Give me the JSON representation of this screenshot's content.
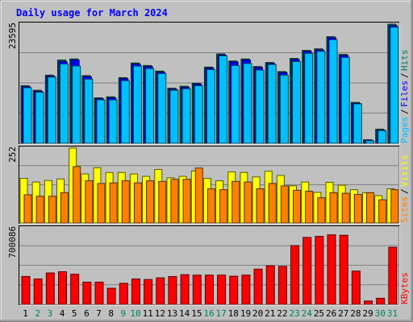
{
  "colors": {
    "background": "#c0c0c0",
    "plot_bg": "#c0c0c0",
    "title": "#0000ff",
    "hits": "#00805c",
    "files": "#0000ff",
    "pages": "#00c0ff",
    "visits": "#ffff00",
    "sites": "#ff8000",
    "kbytes": "#ff0000",
    "weekend_day": "#00805c",
    "weekday": "#000000"
  },
  "chart_data": {
    "type": "bar",
    "title": "Daily usage for March 2024",
    "categories": [
      "1",
      "2",
      "3",
      "4",
      "5",
      "6",
      "7",
      "8",
      "9",
      "10",
      "11",
      "12",
      "13",
      "14",
      "15",
      "16",
      "17",
      "18",
      "19",
      "20",
      "21",
      "22",
      "23",
      "24",
      "25",
      "26",
      "27",
      "28",
      "29",
      "30",
      "31"
    ],
    "weekend_days": [
      "2",
      "3",
      "9",
      "10",
      "16",
      "17",
      "23",
      "24",
      "30",
      "31"
    ],
    "panels": [
      {
        "name": "hits-files-pages",
        "y_max_label": "23595",
        "ymax": 23595,
        "legend": [
          "Pages",
          "Files",
          "Hits"
        ],
        "series": [
          {
            "name": "Hits",
            "values": [
              11400,
              10500,
              13500,
              16500,
              16700,
              13400,
              9000,
              9200,
              13000,
              15900,
              15400,
              14300,
              10900,
              11300,
              11900,
              15100,
              17700,
              16300,
              16700,
              15200,
              16000,
              14200,
              16800,
              18400,
              18700,
              21100,
              17600,
              8100,
              700,
              2800,
              23595
            ]
          },
          {
            "name": "Files",
            "values": [
              11200,
              10300,
              13300,
              16200,
              16500,
              13200,
              8800,
              9000,
              12800,
              15700,
              15200,
              14100,
              10700,
              11100,
              11700,
              14900,
              17500,
              16100,
              16500,
              15000,
              15800,
              14000,
              16600,
              18200,
              18500,
              20900,
              17400,
              7900,
              600,
              2600,
              23300
            ]
          },
          {
            "name": "Pages",
            "values": [
              11000,
              10100,
              13100,
              15700,
              15300,
              12700,
              8600,
              8600,
              12400,
              15300,
              14800,
              13800,
              10500,
              10800,
              11400,
              14600,
              17300,
              15400,
              15800,
              14500,
              15600,
              13500,
              16200,
              17800,
              18200,
              20500,
              17000,
              7800,
              500,
              2500,
              23000
            ]
          }
        ]
      },
      {
        "name": "visits-sites",
        "y_max_label": "252",
        "ymax": 252,
        "legend": [
          "Sites",
          "Visits"
        ],
        "series": [
          {
            "name": "Visits",
            "values": [
              150,
              138,
              143,
              148,
              252,
              165,
              186,
              170,
              170,
              165,
              157,
              180,
              152,
              157,
              175,
              150,
              142,
              172,
              170,
              155,
              174,
              160,
              125,
              138,
              103,
              137,
              127,
              112,
              102,
              92,
              115
            ]
          },
          {
            "name": "Sites",
            "values": [
              95,
              90,
              90,
              102,
              190,
              142,
              133,
              135,
              142,
              135,
              142,
              140,
              147,
              147,
              185,
              115,
              112,
              140,
              138,
              115,
              133,
              125,
              110,
              107,
              85,
              102,
              100,
              96,
              102,
              78,
              112
            ]
          }
        ]
      },
      {
        "name": "kbytes",
        "y_max_label": "700086",
        "ymax": 700086,
        "legend": [
          "KBytes"
        ],
        "series": [
          {
            "name": "KBytes",
            "values": [
              255000,
              232000,
              287000,
              298000,
              275000,
              203000,
              203000,
              147000,
              192000,
              232000,
              227000,
              242000,
              254000,
              271000,
              267000,
              267000,
              267000,
              257000,
              267000,
              322000,
              352000,
              347000,
              537000,
              612000,
              622000,
              636000,
              632000,
              304000,
              30000,
              55000,
              522000
            ]
          }
        ]
      }
    ]
  }
}
